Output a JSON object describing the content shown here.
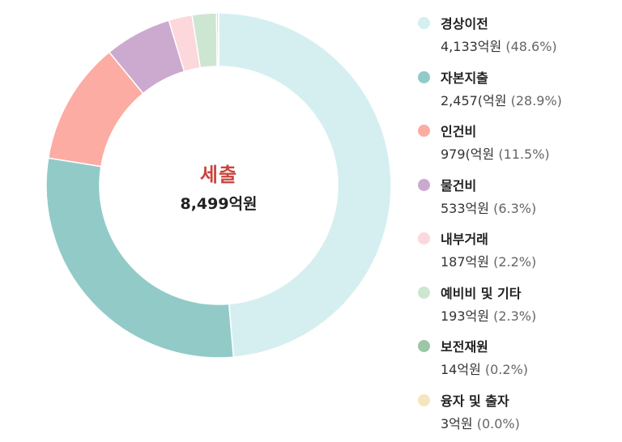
{
  "chart_data": {
    "type": "pie",
    "style": "donut",
    "title": "",
    "center": {
      "label": "세출",
      "value": "8,499억원"
    },
    "legend_position": "right",
    "slices": [
      {
        "name": "경상이전",
        "value_text": "4,133억원",
        "pct_text": "(48.6%)",
        "value": 4133,
        "percent": 48.6,
        "color": "#d5eff1"
      },
      {
        "name": "자본지출",
        "value_text": "2,457(억원",
        "pct_text": "(28.9%)",
        "value": 2457,
        "percent": 28.9,
        "color": "#92cac8"
      },
      {
        "name": "인건비",
        "value_text": "979(억원",
        "pct_text": "(11.5%)",
        "value": 979,
        "percent": 11.5,
        "color": "#fcaca2"
      },
      {
        "name": "물건비",
        "value_text": "533억원",
        "pct_text": "(6.3%)",
        "value": 533,
        "percent": 6.3,
        "color": "#cca9ce"
      },
      {
        "name": "내부거래",
        "value_text": "187억원",
        "pct_text": "(2.2%)",
        "value": 187,
        "percent": 2.2,
        "color": "#fcd7dc"
      },
      {
        "name": "예비비 및 기타",
        "value_text": "193억원",
        "pct_text": "(2.3%)",
        "value": 193,
        "percent": 2.3,
        "color": "#cde6d1"
      },
      {
        "name": "보전재원",
        "value_text": "14억원",
        "pct_text": "(0.2%)",
        "value": 14,
        "percent": 0.2,
        "color": "#9cc7a6"
      },
      {
        "name": "융자 및 출자",
        "value_text": "3억원",
        "pct_text": "(0.0%)",
        "value": 3,
        "percent": 0.0,
        "color": "#f6e6bd"
      }
    ]
  }
}
